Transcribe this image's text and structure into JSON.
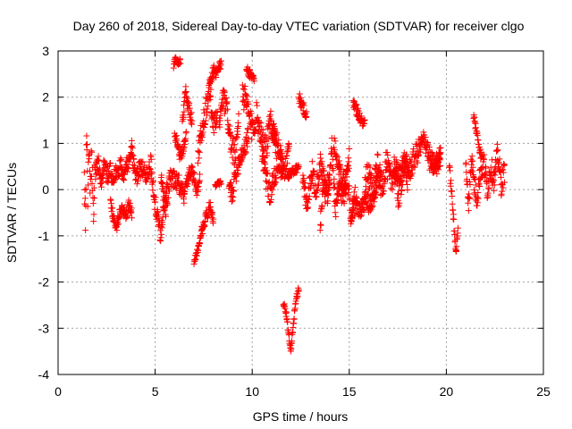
{
  "chart_data": {
    "type": "scatter",
    "title": "Day 260 of 2018, Sidereal Day-to-day VTEC variation (SDTVAR) for receiver clgo",
    "xlabel": "GPS time / hours",
    "ylabel": "SDTVAR / TECUs",
    "xlim": [
      0,
      25
    ],
    "ylim": [
      -4,
      3
    ],
    "xticks": [
      "0",
      "5",
      "10",
      "15",
      "20",
      "25"
    ],
    "yticks": [
      "-4",
      "-3",
      "-2",
      "-1",
      "0",
      "1",
      "2",
      "3"
    ],
    "grid": true,
    "marker": "plus",
    "color": "#ff0000",
    "segments": [
      {
        "x0": 1.35,
        "x1": 1.9,
        "y": [
          0.3,
          -0.8,
          1.3,
          -0.2,
          0.9,
          0.1,
          0.6,
          0.2,
          -0.5,
          0.4
        ],
        "spread": 0.35
      },
      {
        "x0": 1.9,
        "x1": 3.0,
        "y": [
          0.3,
          0.6,
          0.2,
          0.5,
          0.3,
          0.4,
          0.1,
          0.5
        ],
        "spread": 0.2
      },
      {
        "x0": 2.7,
        "x1": 3.8,
        "y": [
          -0.3,
          -0.6,
          -0.8,
          -0.5,
          -0.4,
          -0.6,
          -0.3,
          -0.5
        ],
        "spread": 0.12
      },
      {
        "x0": 3.0,
        "x1": 4.8,
        "y": [
          0.3,
          0.5,
          0.4,
          0.6,
          0.9,
          0.2,
          0.5,
          0.4,
          0.3,
          0.6
        ],
        "spread": 0.2
      },
      {
        "x0": 4.8,
        "x1": 5.6,
        "y": [
          0.4,
          -0.2,
          -0.6,
          -1.0,
          -0.4,
          0.0
        ],
        "spread": 0.2
      },
      {
        "x0": 5.3,
        "x1": 6.5,
        "y": [
          0.2,
          -0.4,
          0.3,
          0.2,
          0.1,
          -0.2
        ],
        "spread": 0.2
      },
      {
        "x0": 5.95,
        "x1": 6.3,
        "y": [
          2.7,
          2.85,
          2.75,
          2.8
        ],
        "spread": 0.08
      },
      {
        "x0": 6.0,
        "x1": 6.6,
        "y": [
          1.2,
          1.0,
          0.7,
          0.9,
          1.2
        ],
        "spread": 0.12
      },
      {
        "x0": 6.4,
        "x1": 6.9,
        "y": [
          1.5,
          2.1,
          1.8,
          1.5
        ],
        "spread": 0.15
      },
      {
        "x0": 6.5,
        "x1": 7.3,
        "y": [
          0.0,
          0.2,
          0.4,
          0.3,
          -0.1,
          0.3
        ],
        "spread": 0.15
      },
      {
        "x0": 7.0,
        "x1": 7.4,
        "y": [
          -1.55,
          -1.4,
          -1.2,
          -0.9
        ],
        "spread": 0.06
      },
      {
        "x0": 7.4,
        "x1": 8.0,
        "y": [
          -0.9,
          -0.7,
          -0.5,
          -0.3,
          -0.7
        ],
        "spread": 0.12
      },
      {
        "x0": 7.2,
        "x1": 8.2,
        "y": [
          0.7,
          1.3,
          1.7,
          2.2,
          1.4,
          1.7
        ],
        "spread": 0.25
      },
      {
        "x0": 7.8,
        "x1": 8.4,
        "y": [
          2.2,
          2.6,
          2.5,
          2.75
        ],
        "spread": 0.12
      },
      {
        "x0": 8.1,
        "x1": 8.4,
        "y": [
          0.1,
          0.15
        ],
        "spread": 0.05
      },
      {
        "x0": 8.3,
        "x1": 9.3,
        "y": [
          1.4,
          2.0,
          1.7,
          1.0,
          0.7,
          1.4
        ],
        "spread": 0.25
      },
      {
        "x0": 8.8,
        "x1": 9.8,
        "y": [
          0.1,
          -0.1,
          0.3,
          0.6,
          0.8,
          0.9,
          1.2
        ],
        "spread": 0.2
      },
      {
        "x0": 9.7,
        "x1": 10.1,
        "y": [
          2.6,
          2.4
        ],
        "spread": 0.1
      },
      {
        "x0": 9.5,
        "x1": 11.2,
        "y": [
          2.1,
          1.8,
          1.3,
          1.6,
          1.2,
          0.9,
          1.5,
          1.1
        ],
        "spread": 0.3
      },
      {
        "x0": 10.5,
        "x1": 11.6,
        "y": [
          0.8,
          0.2,
          -0.1,
          0.3,
          0.6,
          0.2
        ],
        "spread": 0.25
      },
      {
        "x0": 11.0,
        "x1": 11.9,
        "y": [
          1.3,
          1.1,
          0.8,
          0.4,
          1.0
        ],
        "spread": 0.2
      },
      {
        "x0": 11.6,
        "x1": 12.0,
        "y": [
          -2.5,
          -2.55,
          -2.7,
          -3.0,
          -3.3,
          -3.5
        ],
        "spread": 0.07
      },
      {
        "x0": 12.0,
        "x1": 12.4,
        "y": [
          -3.4,
          -3.0,
          -2.6,
          -2.3,
          -2.15
        ],
        "spread": 0.07
      },
      {
        "x0": 11.8,
        "x1": 12.4,
        "y": [
          0.3,
          0.4,
          0.5
        ],
        "spread": 0.1
      },
      {
        "x0": 12.4,
        "x1": 12.8,
        "y": [
          2.0,
          1.8,
          1.6
        ],
        "spread": 0.12
      },
      {
        "x0": 12.6,
        "x1": 14.0,
        "y": [
          0.2,
          -0.3,
          0.4,
          0.0,
          0.6,
          -0.1,
          0.3
        ],
        "spread": 0.25
      },
      {
        "x0": 13.5,
        "x1": 15.3,
        "y": [
          -0.8,
          0.2,
          -0.3,
          0.9,
          -0.5,
          0.1,
          -0.2,
          0.3,
          -0.6,
          -0.1
        ],
        "spread": 0.25
      },
      {
        "x0": 14.2,
        "x1": 15.0,
        "y": [
          1.0,
          0.6,
          0.3,
          0.1,
          0.7
        ],
        "spread": 0.2
      },
      {
        "x0": 15.2,
        "x1": 15.8,
        "y": [
          1.9,
          1.7,
          1.5,
          1.4
        ],
        "spread": 0.12
      },
      {
        "x0": 15.1,
        "x1": 16.6,
        "y": [
          -0.6,
          -0.3,
          -0.5,
          -0.2,
          -0.4,
          0.0,
          0.3
        ],
        "spread": 0.2
      },
      {
        "x0": 15.8,
        "x1": 18.0,
        "y": [
          0.2,
          0.3,
          0.1,
          0.5,
          0.0,
          0.6,
          0.2,
          0.4,
          -0.2,
          0.5,
          0.2
        ],
        "spread": 0.3
      },
      {
        "x0": 17.3,
        "x1": 19.7,
        "y": [
          0.5,
          0.3,
          0.6,
          0.4,
          0.7,
          0.9,
          1.1,
          0.6,
          0.5,
          0.7
        ],
        "spread": 0.25
      },
      {
        "x0": 19.2,
        "x1": 19.7,
        "y": [
          0.6,
          0.5,
          0.8
        ],
        "spread": 0.1
      },
      {
        "x0": 20.15,
        "x1": 20.6,
        "y": [
          0.5,
          0.1,
          -0.4,
          -1.0,
          -1.3,
          -0.8
        ],
        "spread": 0.12
      },
      {
        "x0": 21.0,
        "x1": 21.4,
        "y": [
          0.5,
          0.0,
          -0.3,
          0.4,
          0.7,
          0.2
        ],
        "spread": 0.2
      },
      {
        "x0": 21.4,
        "x1": 21.8,
        "y": [
          1.6,
          1.3,
          1.0,
          0.7
        ],
        "spread": 0.1
      },
      {
        "x0": 21.4,
        "x1": 23.0,
        "y": [
          0.2,
          -0.2,
          0.4,
          0.6,
          0.0,
          0.5,
          0.2,
          0.8,
          0.1,
          0.4
        ],
        "spread": 0.25
      }
    ]
  }
}
